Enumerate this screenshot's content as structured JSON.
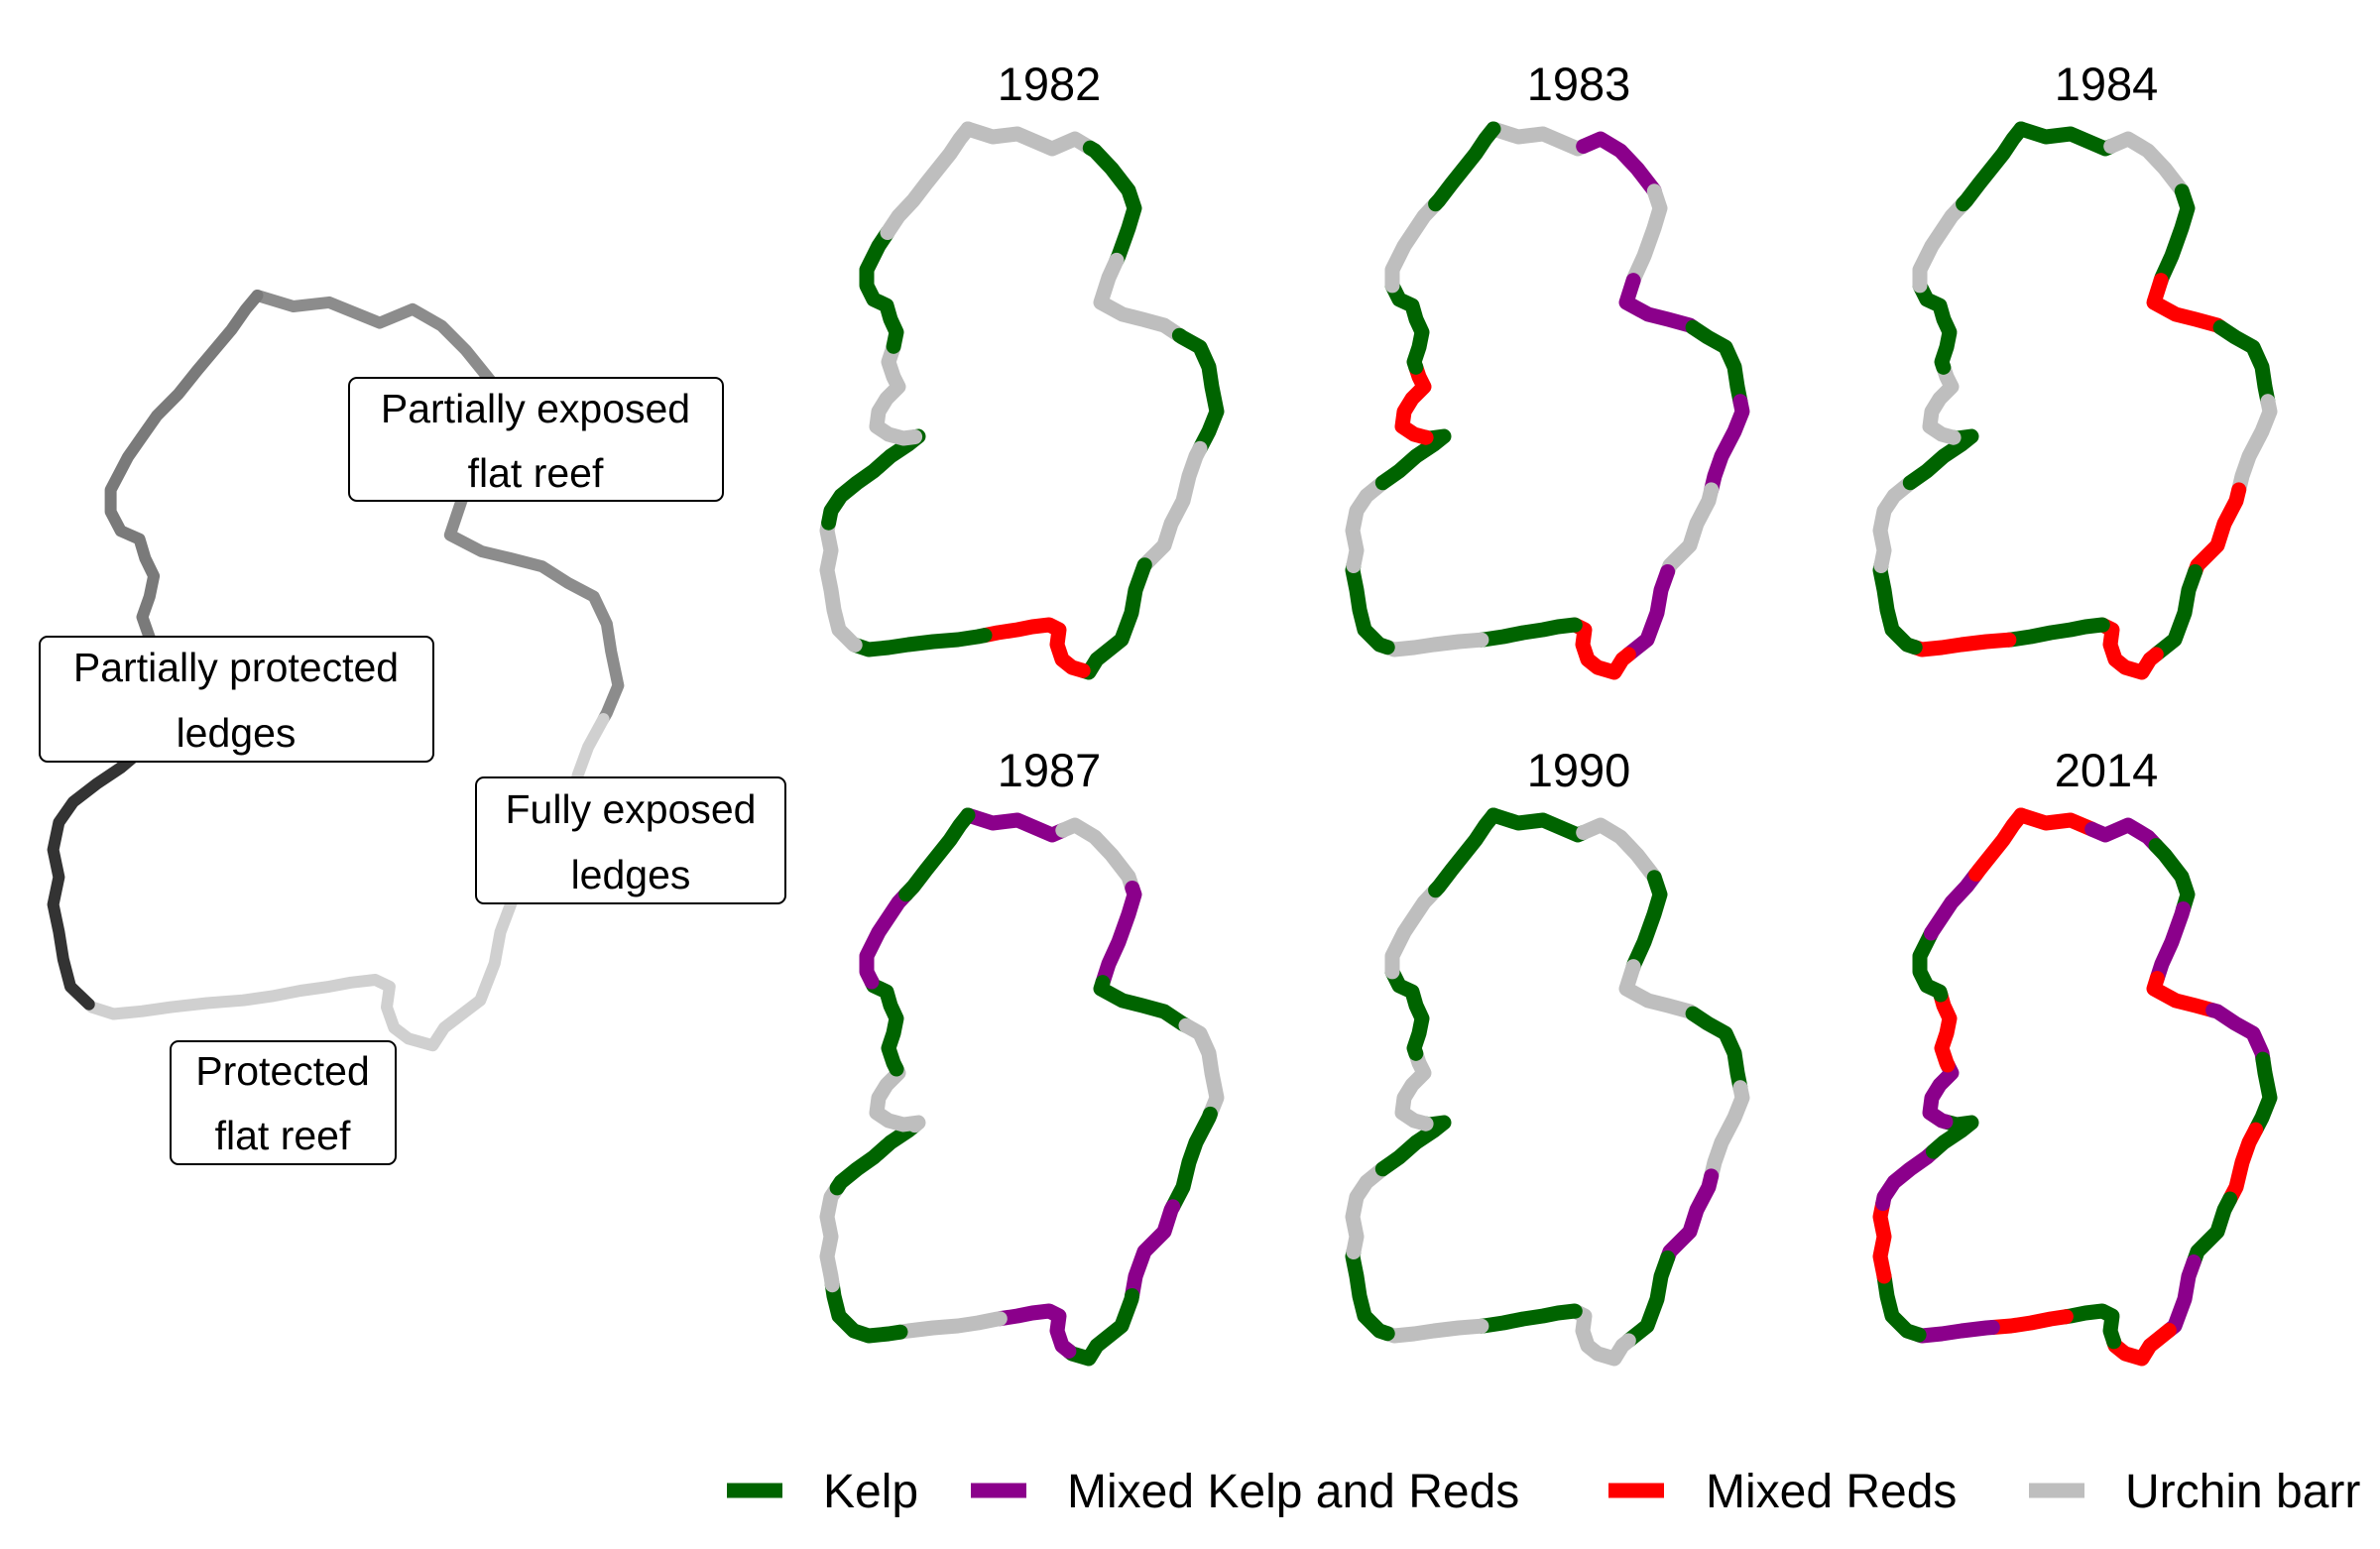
{
  "overview_map": {
    "labels": [
      {
        "id": "partially-exposed-flat-reef",
        "lines": [
          "Partially exposed",
          "flat reef"
        ]
      },
      {
        "id": "partially-protected-ledges",
        "lines": [
          "Partially protected",
          "ledges"
        ]
      },
      {
        "id": "fully-exposed-ledges",
        "lines": [
          "Fully exposed",
          "ledges"
        ]
      },
      {
        "id": "protected-flat-reef",
        "lines": [
          "Protected",
          "flat reef"
        ]
      }
    ],
    "shades": {
      "partially_exposed_flat_reef": "#8c8c8c",
      "partially_protected_ledges": "#7a7a7a",
      "fully_exposed_ledges": "#d0d0d0",
      "protected_flat_reef": "#333333"
    }
  },
  "years": [
    {
      "year": "1982",
      "segments": [
        "urchin",
        "kelp",
        "urchin",
        "kelp",
        "urchin",
        "kelp",
        "mixed_reds",
        "kelp",
        "urchin",
        "kelp",
        "urchin",
        "kelp",
        "urchin"
      ]
    },
    {
      "year": "1983",
      "segments": [
        "urchin",
        "mixed_kelp_reds",
        "urchin",
        "mixed_kelp_reds",
        "kelp",
        "mixed_kelp_reds",
        "urchin",
        "mixed_kelp_reds",
        "mixed_reds",
        "kelp",
        "urchin",
        "kelp",
        "urchin",
        "kelp",
        "mixed_reds",
        "kelp",
        "urchin",
        "kelp"
      ]
    },
    {
      "year": "1984",
      "segments": [
        "kelp",
        "urchin",
        "kelp",
        "mixed_reds",
        "kelp",
        "urchin",
        "mixed_reds",
        "kelp",
        "mixed_reds",
        "kelp",
        "mixed_reds",
        "kelp",
        "urchin",
        "kelp",
        "urchin",
        "kelp",
        "urchin",
        "kelp"
      ]
    },
    {
      "year": "1987",
      "segments": [
        "mixed_kelp_reds",
        "urchin",
        "mixed_kelp_reds",
        "kelp",
        "urchin",
        "kelp",
        "mixed_kelp_reds",
        "kelp",
        "mixed_kelp_reds",
        "urchin",
        "kelp",
        "urchin",
        "kelp",
        "urchin",
        "kelp",
        "mixed_kelp_reds",
        "kelp"
      ]
    },
    {
      "year": "1990",
      "segments": [
        "kelp",
        "urchin",
        "kelp",
        "urchin",
        "kelp",
        "urchin",
        "mixed_kelp_reds",
        "kelp",
        "urchin",
        "kelp",
        "urchin",
        "kelp",
        "urchin",
        "kelp",
        "urchin",
        "kelp",
        "urchin",
        "kelp"
      ]
    },
    {
      "year": "2014",
      "segments": [
        "mixed_reds",
        "mixed_kelp_reds",
        "kelp",
        "mixed_kelp_reds",
        "mixed_reds",
        "mixed_kelp_reds",
        "kelp",
        "mixed_reds",
        "kelp",
        "mixed_kelp_reds",
        "mixed_reds",
        "kelp",
        "mixed_reds",
        "mixed_kelp_reds",
        "kelp",
        "mixed_reds",
        "mixed_kelp_reds",
        "kelp",
        "mixed_kelp_reds",
        "mixed_reds",
        "kelp",
        "mixed_kelp_reds",
        "mixed_reds"
      ]
    }
  ],
  "legend": {
    "items": [
      {
        "key": "kelp",
        "label": "Kelp",
        "color": "#006400"
      },
      {
        "key": "mixed_kelp_reds",
        "label": "Mixed Kelp and Reds",
        "color": "#8b008b"
      },
      {
        "key": "mixed_reds",
        "label": "Mixed Reds",
        "color": "#ff0000"
      },
      {
        "key": "urchin",
        "label": "Urchin barr",
        "color": "#bebebe"
      }
    ]
  }
}
